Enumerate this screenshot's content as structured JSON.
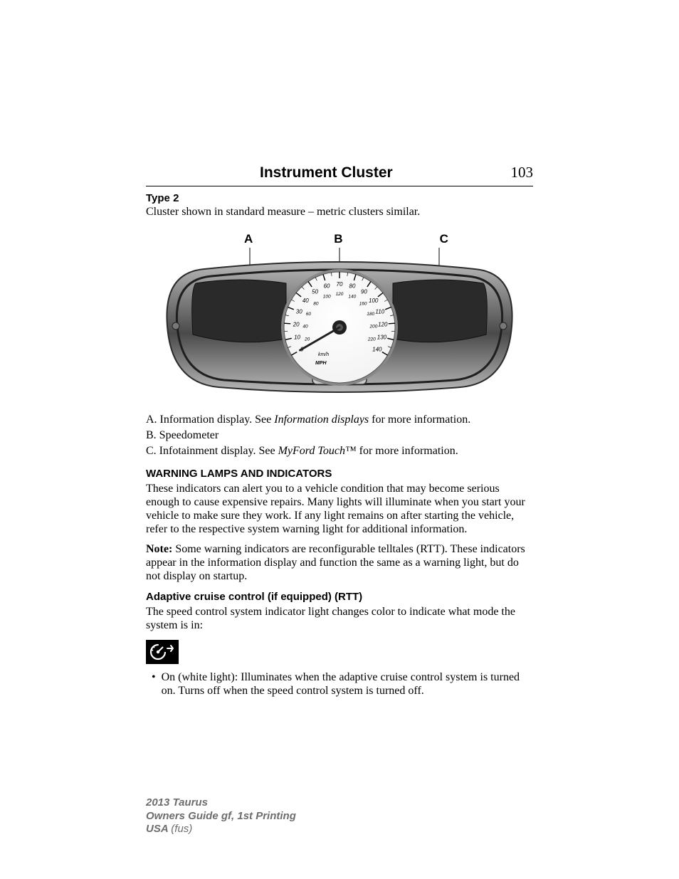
{
  "header": {
    "title": "Instrument Cluster",
    "page_number": "103"
  },
  "type_label": "Type 2",
  "type_caption": "Cluster shown in standard measure – metric clusters similar.",
  "callouts": {
    "a": "A",
    "b": "B",
    "c": "C"
  },
  "cluster_svg": {
    "body_grad_light": "#b8b8b8",
    "body_grad_dark": "#4a4a4a",
    "dial_face": "#f2f2f2",
    "dial_ring": "#888888",
    "tick_color": "#000000",
    "needle_color": "#202020",
    "mph_outer": [
      "0",
      "10",
      "20",
      "30",
      "40",
      "50",
      "60",
      "70",
      "80",
      "90",
      "100",
      "110",
      "120",
      "130",
      "140"
    ],
    "kmh_inner": [
      "20",
      "40",
      "60",
      "80",
      "100",
      "120",
      "140",
      "160",
      "180",
      "200",
      "220"
    ],
    "unit_inner": "km/h",
    "unit_outer": "MPH"
  },
  "legend": {
    "a_pre": "A. Information display. See ",
    "a_ital": "Information displays",
    "a_post": " for more information.",
    "b": "B. Speedometer",
    "c_pre": "C. Infotainment display. See ",
    "c_ital": "MyFord Touch™",
    "c_post": " for more information."
  },
  "warning": {
    "heading": "WARNING LAMPS AND INDICATORS",
    "para": "These indicators can alert you to a vehicle condition that may become serious enough to cause expensive repairs. Many lights will illuminate when you start your vehicle to make sure they work. If any light remains on after starting the vehicle, refer to the respective system warning light for additional information.",
    "note_label": "Note:",
    "note_body": " Some warning indicators are reconfigurable telltales (RTT). These indicators appear in the information display and function the same as a warning light, but do not display on startup."
  },
  "acc": {
    "heading": "Adaptive cruise control (if equipped) (RTT)",
    "para": "The speed control system indicator light changes color to indicate what mode the system is in:",
    "bullet": "On (white light): Illuminates when the adaptive cruise control system is turned on. Turns off when the speed control system is turned off."
  },
  "footer": {
    "line1": "2013 Taurus",
    "line2": "Owners Guide gf, 1st Printing",
    "line3a": "USA ",
    "line3b": "(fus)"
  }
}
